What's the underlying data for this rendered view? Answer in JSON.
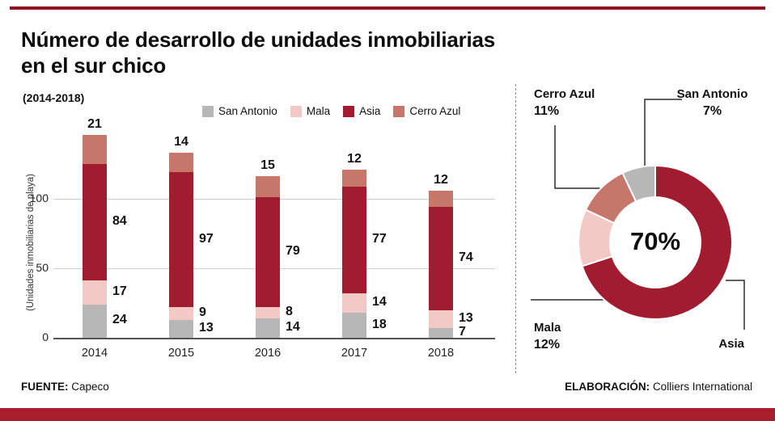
{
  "page_title": {
    "line1": "Número de desarrollo de unidades inmobiliarias",
    "line2": "en el sur chico"
  },
  "subtitle": "(2014-2018)",
  "footer": {
    "source_label": "FUENTE:",
    "source_value": "Capeco",
    "elaboration_label": "ELABORACIÓN:",
    "elaboration_value": "Colliers International"
  },
  "colors": {
    "asia": "#a21c30",
    "mala": "#f3c9c5",
    "san_antonio": "#b7b7b7",
    "cerro_azul": "#c7776a",
    "top_rule": "#8c1723",
    "bottom_bar": "#a81e2c"
  },
  "chart_data": [
    {
      "type": "bar",
      "stacked": true,
      "title": "Número de desarrollo de unidades inmobiliarias en el sur chico (2014-2018)",
      "categories": [
        "2014",
        "2015",
        "2016",
        "2017",
        "2018"
      ],
      "series": [
        {
          "name": "San Antonio",
          "color": "#b7b7b7",
          "values": [
            24,
            13,
            14,
            18,
            7
          ]
        },
        {
          "name": "Mala",
          "color": "#f3c9c5",
          "values": [
            17,
            9,
            8,
            14,
            13
          ]
        },
        {
          "name": "Asia",
          "color": "#a21c30",
          "values": [
            84,
            97,
            79,
            77,
            74
          ]
        },
        {
          "name": "Cerro Azul",
          "color": "#c7776a",
          "values": [
            21,
            14,
            15,
            12,
            12
          ]
        }
      ],
      "ylabel": "(Unidades inmobiliarias de playa)",
      "yticks": [
        0,
        50,
        100
      ],
      "ylim": [
        0,
        150
      ],
      "grid": true,
      "legend_position": "top"
    },
    {
      "type": "pie",
      "donut": true,
      "center_label": "70%",
      "slices": [
        {
          "name": "Asia",
          "pct": 70,
          "color": "#a21c30"
        },
        {
          "name": "Mala",
          "pct": 12,
          "color": "#f3c9c5"
        },
        {
          "name": "Cerro Azul",
          "pct": 11,
          "color": "#c7776a"
        },
        {
          "name": "San Antonio",
          "pct": 7,
          "color": "#b7b7b7"
        }
      ]
    }
  ],
  "donut_labels": {
    "cerro_azul": {
      "name": "Cerro Azul",
      "pct": "11%"
    },
    "san_antonio": {
      "name": "San Antonio",
      "pct": "7%"
    },
    "mala": {
      "name": "Mala",
      "pct": "12%"
    },
    "asia": {
      "name": "Asia"
    }
  }
}
